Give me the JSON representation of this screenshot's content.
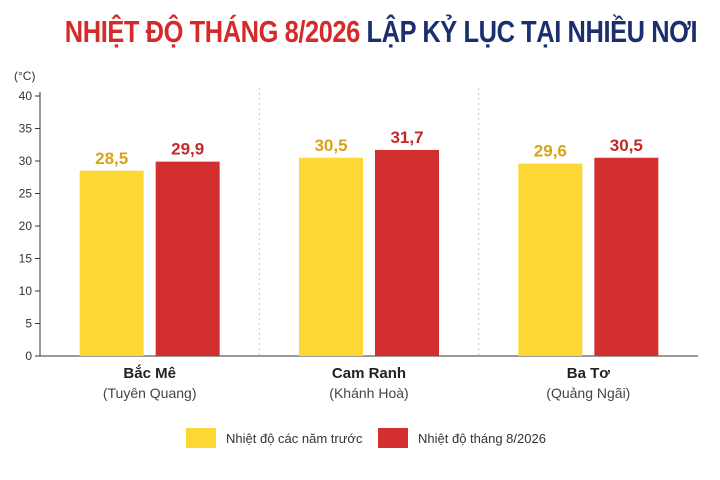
{
  "title": {
    "part1": "NHIỆT ĐỘ THÁNG 8/2026",
    "part2": "LẬP KỶ LỤC TẠI NHIỀU NƠI"
  },
  "colors": {
    "series1": "#fdd835",
    "series2": "#d32f2f",
    "label1": "#d9a21b",
    "label2": "#c62828",
    "title_red": "#d42a2a",
    "title_navy": "#1b2f6e"
  },
  "chart_data": {
    "type": "bar",
    "title": "NHIỆT ĐỘ THÁNG 8/2026 LẬP KỶ LỤC TẠI NHIỀU NƠI",
    "ylabel": "(°C)",
    "ylim": [
      0,
      40
    ],
    "yticks": [
      0,
      5,
      10,
      15,
      20,
      25,
      30,
      35,
      40
    ],
    "grid": false,
    "legend_position": "bottom",
    "categories": [
      {
        "name": "Bắc Mê",
        "sub": "(Tuyên Quang)"
      },
      {
        "name": "Cam Ranh",
        "sub": "(Khánh Hoà)"
      },
      {
        "name": "Ba Tơ",
        "sub": "(Quảng Ngãi)"
      }
    ],
    "series": [
      {
        "name": "Nhiệt độ các năm trước",
        "values": [
          28.5,
          30.5,
          29.6
        ],
        "labels": [
          "28,5",
          "30,5",
          "29,6"
        ]
      },
      {
        "name": "Nhiệt độ tháng 8/2026",
        "values": [
          29.9,
          31.7,
          30.5
        ],
        "labels": [
          "29,9",
          "31,7",
          "30,5"
        ]
      }
    ]
  }
}
